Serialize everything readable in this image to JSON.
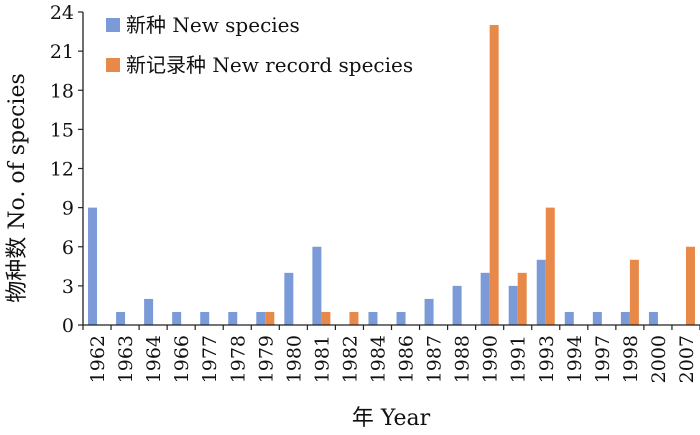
{
  "chart_data": {
    "type": "bar",
    "xlabel": "年 Year",
    "ylabel": "物种数 No. of species",
    "ylim": [
      0,
      24
    ],
    "yticks": [
      0,
      3,
      6,
      9,
      12,
      15,
      18,
      21,
      24
    ],
    "grid": false,
    "legend_position": "top-left",
    "categories": [
      "1962",
      "1963",
      "1964",
      "1966",
      "1977",
      "1978",
      "1979",
      "1980",
      "1981",
      "1982",
      "1984",
      "1986",
      "1987",
      "1988",
      "1990",
      "1991",
      "1993",
      "1994",
      "1997",
      "1998",
      "2000",
      "2007"
    ],
    "series": [
      {
        "name": "新种 New species",
        "color": "#7b9bd8",
        "values": [
          9,
          1,
          2,
          1,
          1,
          1,
          1,
          4,
          6,
          0,
          1,
          1,
          2,
          3,
          4,
          3,
          5,
          1,
          1,
          1,
          1,
          0
        ]
      },
      {
        "name": "新记录种 New record species",
        "color": "#e8894a",
        "values": [
          0,
          0,
          0,
          0,
          0,
          0,
          1,
          0,
          1,
          1,
          0,
          0,
          0,
          0,
          23,
          4,
          9,
          0,
          0,
          5,
          0,
          6
        ]
      }
    ]
  }
}
